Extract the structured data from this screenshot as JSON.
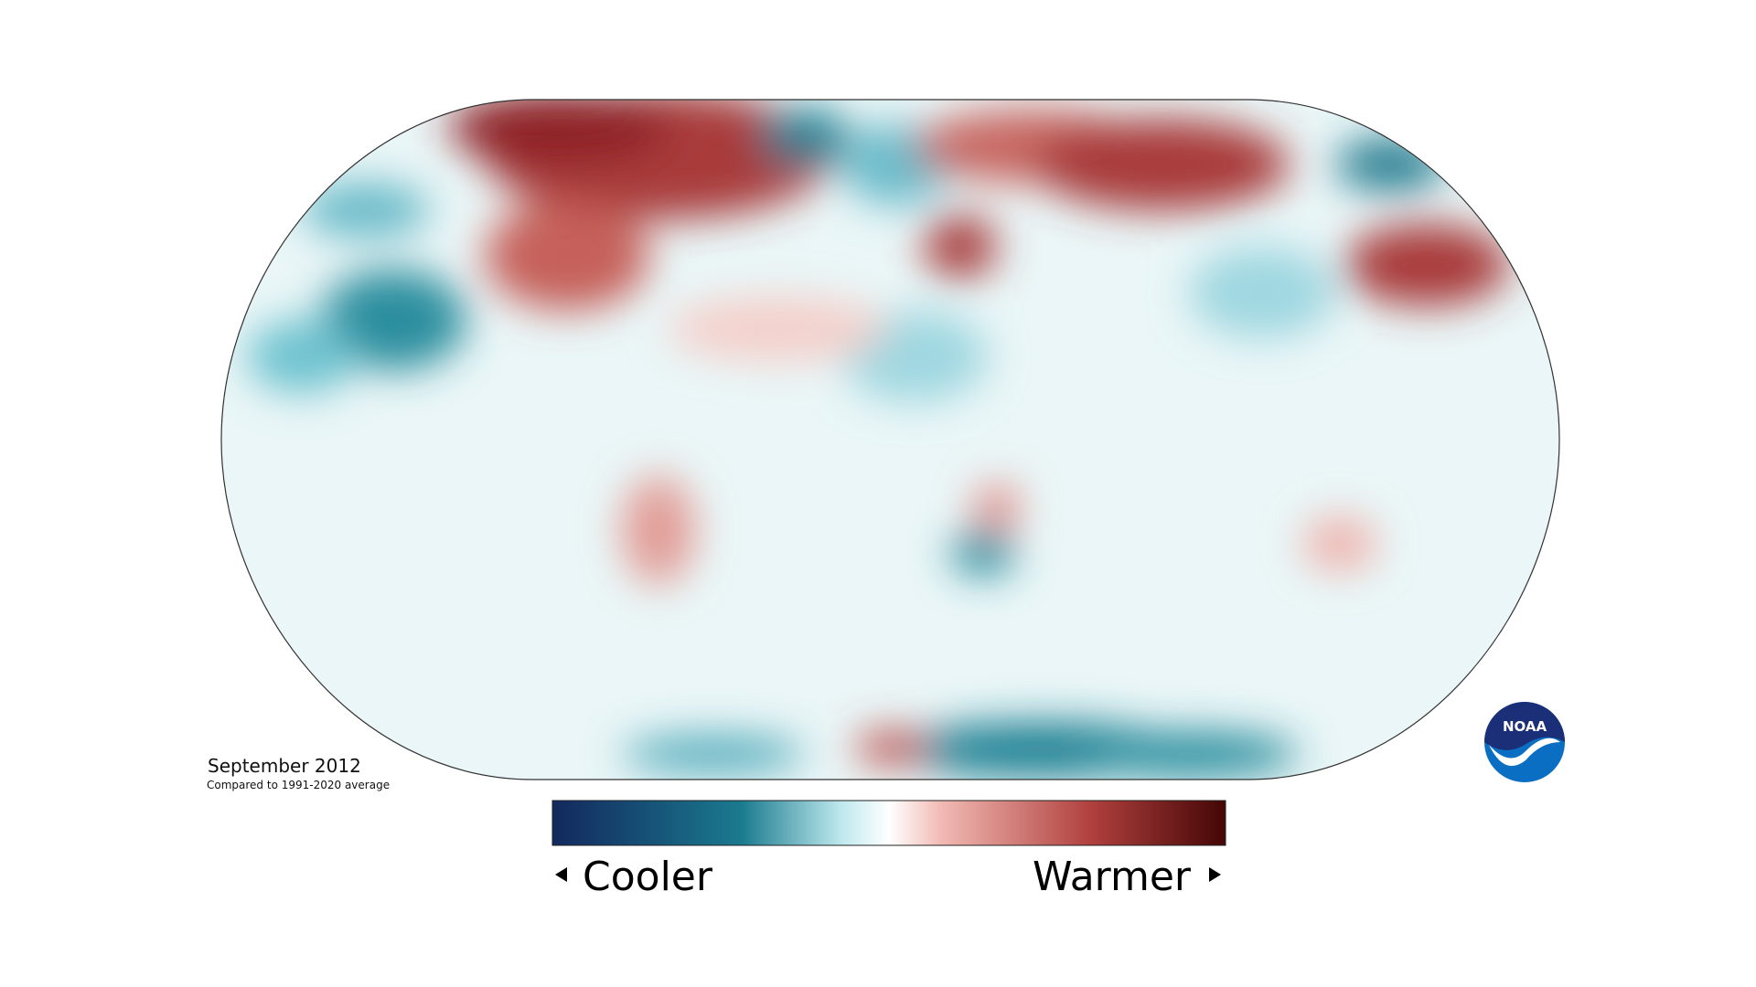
{
  "caption": {
    "title": "September 2012",
    "subtitle": "Compared to 1991-2020 average"
  },
  "legend": {
    "low": "Cooler",
    "high": "Warmer"
  },
  "logo": {
    "text": "NOAA"
  }
}
